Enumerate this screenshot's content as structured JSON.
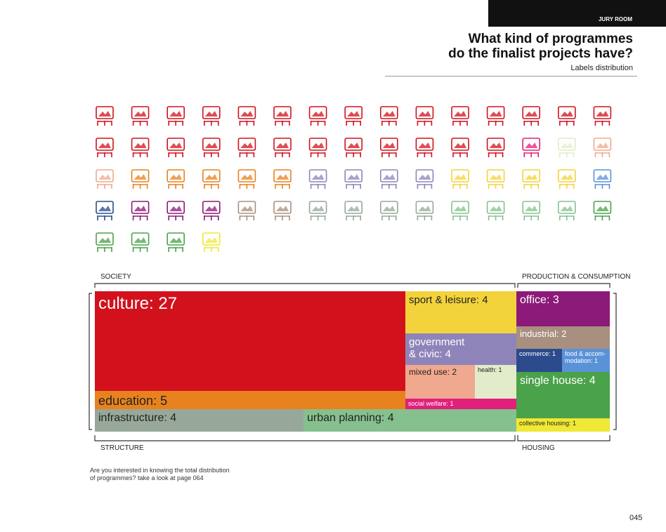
{
  "header": {
    "section": "JURY ROOM",
    "title_lines": [
      "What kind of programmes",
      "do the finalist projects have?"
    ],
    "subtitle": "Labels distribution"
  },
  "chart_data": {
    "type": "treemap",
    "groups": [
      "SOCIETY",
      "PRODUCTION & CONSUMPTION",
      "STRUCTURE",
      "HOUSING"
    ],
    "categories": [
      "culture",
      "education",
      "infrastructure",
      "urban planning",
      "sport & leisure",
      "government & civic",
      "mixed use",
      "health",
      "social welfare",
      "office",
      "industrial",
      "commerce",
      "food & accommodation",
      "single house",
      "collective housing"
    ],
    "values": [
      27,
      5,
      4,
      4,
      4,
      4,
      2,
      1,
      1,
      3,
      2,
      1,
      1,
      4,
      1
    ],
    "value_labels": [
      "culture: 27",
      "education: 5",
      "infrastructure: 4",
      "urban planning: 4",
      "sport & leisure: 4",
      "government\n& civic: 4",
      "mixed use: 2",
      "health: 1",
      "social welfare: 1",
      "office: 3",
      "industrial: 2",
      "commerce: 1",
      "food & accom-\nmodation: 1",
      "single house: 4",
      "collective housing: 1"
    ],
    "colors": [
      "#d2111d",
      "#e8821e",
      "#97a89a",
      "#86c08f",
      "#f3d33c",
      "#8f84ba",
      "#f0a88e",
      "#e2ecca",
      "#e0207a",
      "#8c1a78",
      "#a88f80",
      "#2c4b8c",
      "#5a92d8",
      "#4aa24a",
      "#efe834"
    ]
  },
  "note": "Are you interested in knowing the total distribution\nof programmes? take a look at page 064",
  "page_number": "045"
}
